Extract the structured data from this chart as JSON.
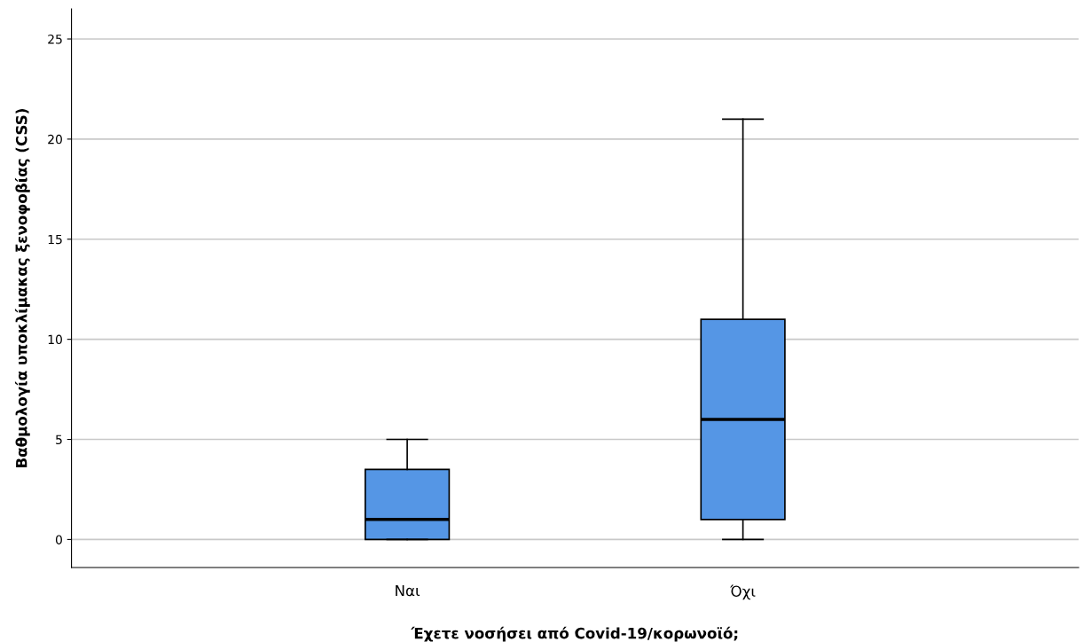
{
  "chart_data": {
    "type": "box",
    "xlabel": "Έχετε νοσήσει από Covid-19/κορωνοϊό;",
    "ylabel": "Βαθμολογία υποκλίμακας ξενοφοβίας (CSS)",
    "categories": [
      "Ναι",
      "Όχι"
    ],
    "boxes": [
      {
        "low": 0,
        "q1": 0,
        "median": 1,
        "q3": 3.5,
        "high": 5
      },
      {
        "low": 0,
        "q1": 1,
        "median": 6,
        "q3": 11,
        "high": 21
      }
    ],
    "color": "#5596e5",
    "ylim": [
      -1.4,
      26.5
    ],
    "yticks": [
      0,
      5,
      10,
      15,
      20,
      25
    ],
    "grid": "y"
  }
}
